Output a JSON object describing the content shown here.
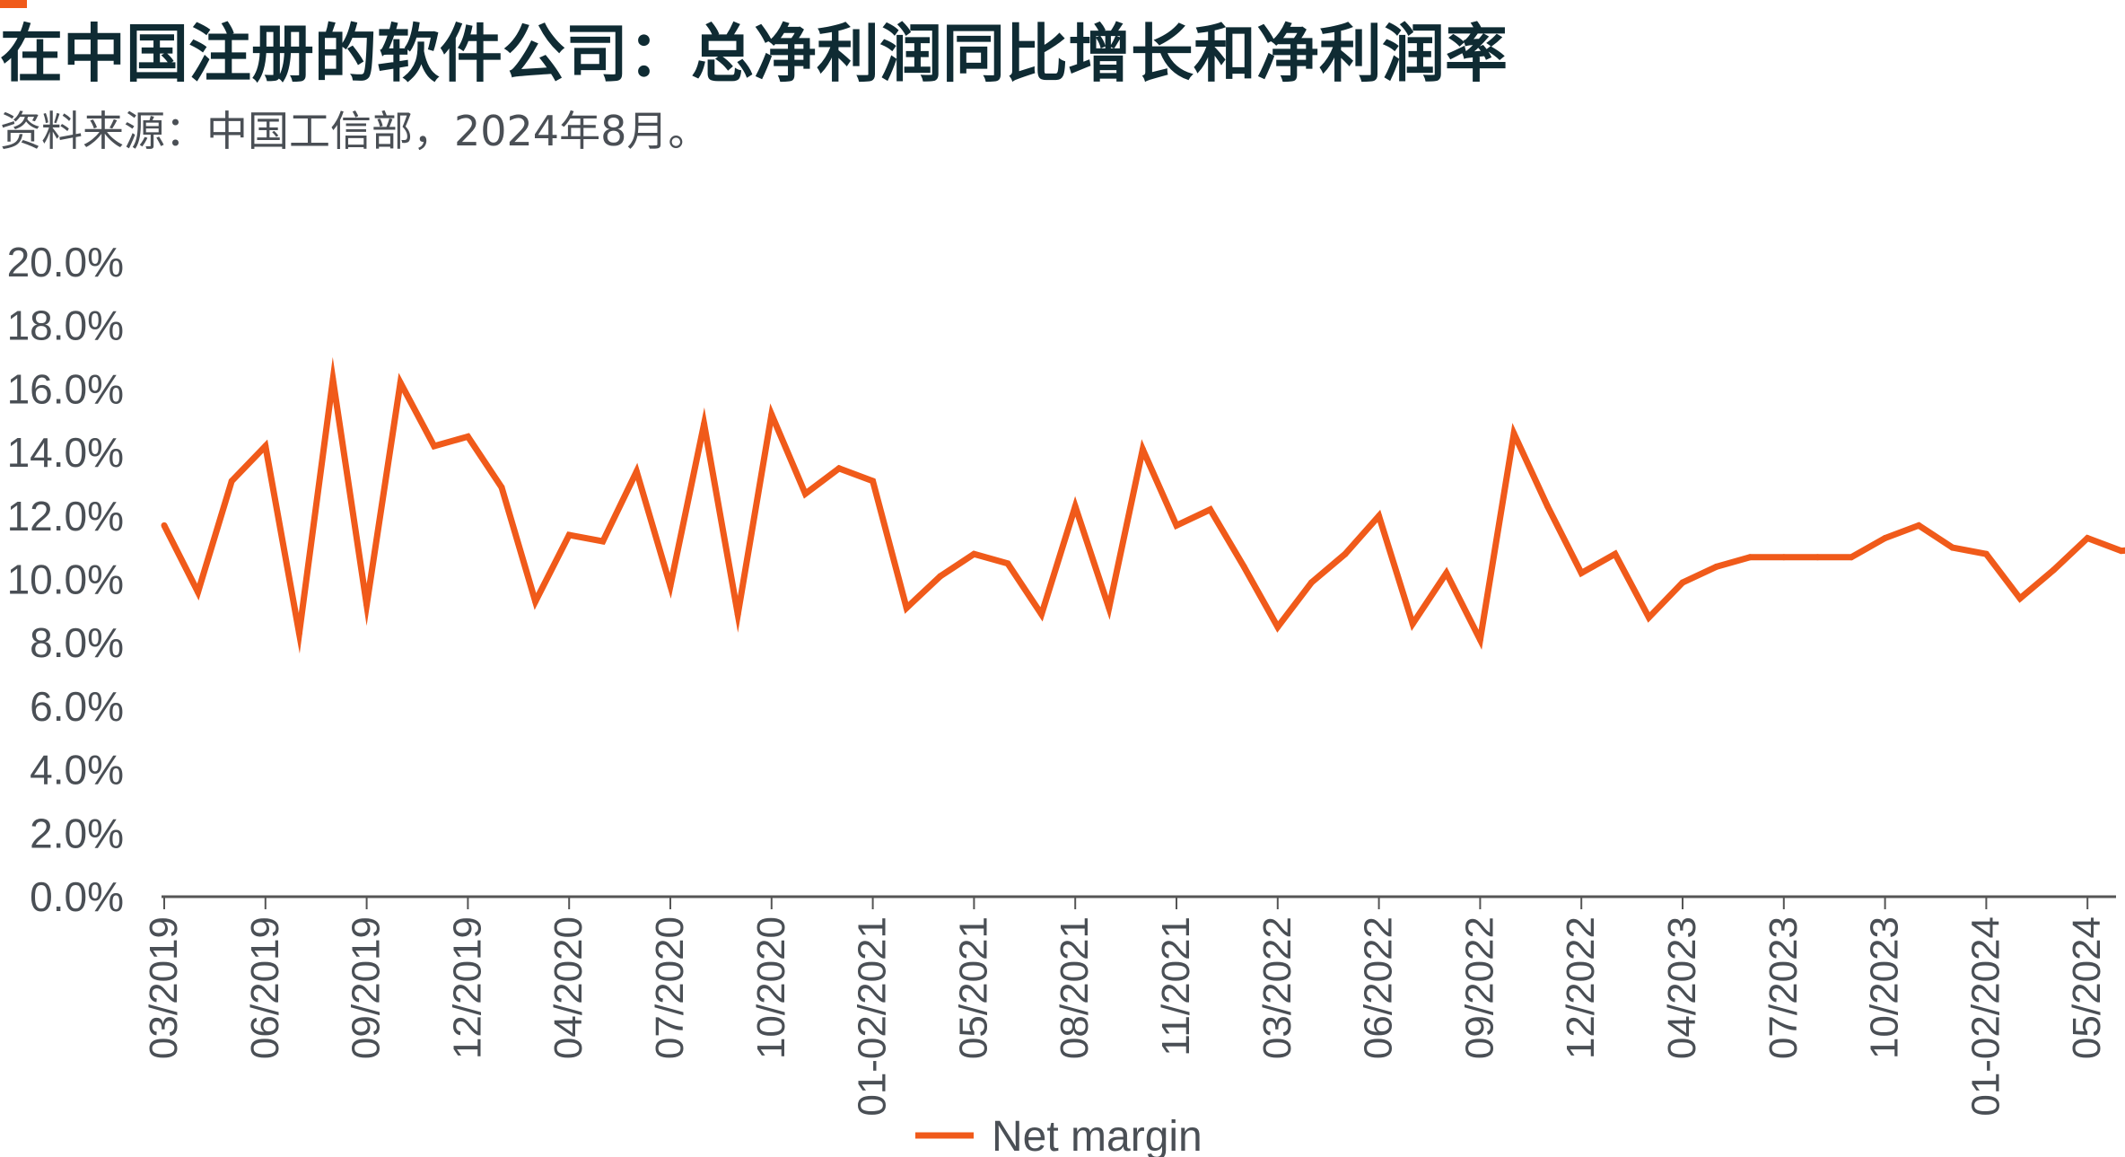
{
  "title": "在中国注册的软件公司：总净利润同比增长和净利润率",
  "subtitle": "资料来源：中国工信部，2024年8月。",
  "colors": {
    "series": "#f05a1a",
    "title": "#0f2b33",
    "text": "#4a4f55",
    "axis": "#555555"
  },
  "chart_data": {
    "type": "line",
    "xlabel": "",
    "ylabel": "",
    "ylim": [
      0,
      20
    ],
    "y_ticks": [
      "0.0%",
      "2.0%",
      "4.0%",
      "6.0%",
      "8.0%",
      "10.0%",
      "12.0%",
      "14.0%",
      "16.0%",
      "18.0%",
      "20.0%"
    ],
    "grid": false,
    "legend_position": "bottom-center",
    "x_tick_labels": [
      "03/2019",
      "06/2019",
      "09/2019",
      "12/2019",
      "04/2020",
      "07/2020",
      "10/2020",
      "01-02/2021",
      "05/2021",
      "08/2021",
      "11/2021",
      "03/2022",
      "06/2022",
      "09/2022",
      "12/2022",
      "04/2023",
      "07/2023",
      "10/2023",
      "01-02/2024",
      "05/2024"
    ],
    "x": [
      "03/2019",
      "04/2019",
      "05/2019",
      "06/2019",
      "07/2019",
      "08/2019",
      "09/2019",
      "10/2019",
      "11/2019",
      "12/2019",
      "01-02/2020",
      "03/2020",
      "04/2020",
      "05/2020",
      "06/2020",
      "07/2020",
      "08/2020",
      "09/2020",
      "10/2020",
      "11/2020",
      "12/2020",
      "01-02/2021",
      "03/2021",
      "04/2021",
      "05/2021",
      "06/2021",
      "07/2021",
      "08/2021",
      "09/2021",
      "10/2021",
      "11/2021",
      "12/2021",
      "01-02/2022",
      "03/2022",
      "04/2022",
      "05/2022",
      "06/2022",
      "07/2022",
      "08/2022",
      "09/2022",
      "10/2022",
      "11/2022",
      "12/2022",
      "01-02/2023",
      "03/2023",
      "04/2023",
      "05/2023",
      "06/2023",
      "07/2023",
      "08/2023",
      "09/2023",
      "10/2023",
      "11/2023",
      "12/2023",
      "01-02/2024",
      "03/2024",
      "04/2024",
      "05/2024",
      "06/2024",
      "07/2024"
    ],
    "series": [
      {
        "name": "Net margin",
        "values": [
          11.7,
          9.6,
          13.1,
          14.2,
          8.3,
          16.3,
          9.2,
          16.2,
          14.2,
          14.5,
          12.9,
          9.3,
          11.4,
          11.2,
          13.4,
          9.8,
          14.9,
          8.9,
          15.2,
          12.7,
          13.5,
          13.1,
          9.1,
          10.1,
          10.8,
          10.5,
          8.9,
          12.3,
          9.1,
          14.1,
          11.7,
          12.2,
          10.4,
          8.5,
          9.9,
          10.8,
          12.0,
          8.6,
          10.2,
          8.1,
          14.6,
          12.3,
          10.2,
          10.8,
          8.8,
          9.9,
          10.4,
          10.7,
          10.7,
          10.7,
          10.7,
          11.3,
          11.7,
          11.0,
          10.8,
          9.4,
          10.3,
          11.3,
          10.9,
          11.0
        ]
      }
    ]
  }
}
